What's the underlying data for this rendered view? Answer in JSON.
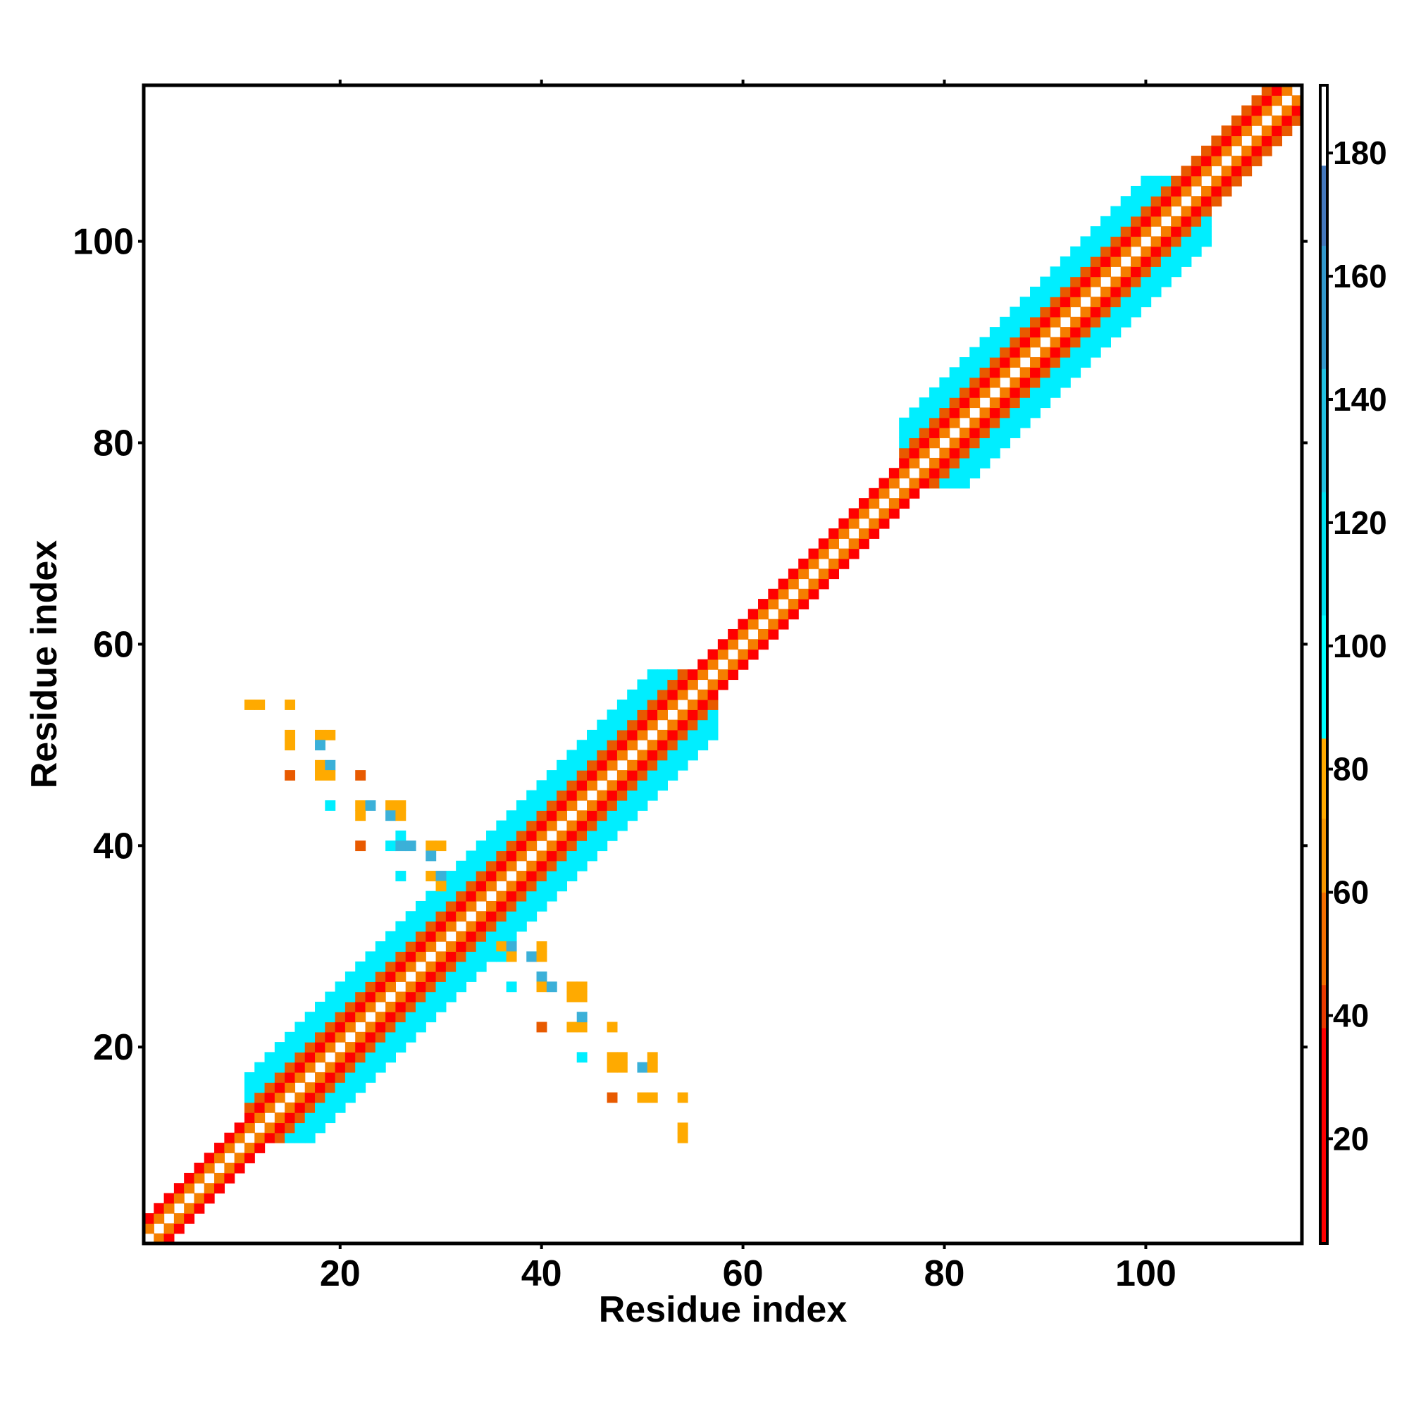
{
  "chart_data": {
    "type": "heatmap",
    "title": "",
    "xlabel": "Residue index",
    "ylabel": "Residue index",
    "xlim": [
      0.5,
      115.5
    ],
    "ylim": [
      0.5,
      115.5
    ],
    "xticks": [
      "20",
      "40",
      "60",
      "80",
      "100"
    ],
    "xtick_values": [
      20,
      40,
      60,
      80,
      100
    ],
    "yticks": [
      "20",
      "40",
      "60",
      "80",
      "100"
    ],
    "ytick_values": [
      20,
      40,
      60,
      80,
      100
    ],
    "grid": false,
    "colorbar": {
      "range": [
        3,
        191
      ],
      "ticks": [
        "20",
        "40",
        "60",
        "80",
        "100",
        "120",
        "140",
        "160",
        "180"
      ],
      "tick_values": [
        20,
        40,
        60,
        80,
        100,
        120,
        140,
        160,
        180
      ],
      "bands": [
        {
          "from": 3,
          "to": 38,
          "color": "#ff0000"
        },
        {
          "from": 38,
          "to": 45,
          "color": "#e83a00"
        },
        {
          "from": 45,
          "to": 60,
          "color": "#f26d00"
        },
        {
          "from": 60,
          "to": 72,
          "color": "#f59500"
        },
        {
          "from": 72,
          "to": 85,
          "color": "#ffaa00"
        },
        {
          "from": 85,
          "to": 105,
          "color": "#00ffff"
        },
        {
          "from": 105,
          "to": 125,
          "color": "#00e0f0"
        },
        {
          "from": 125,
          "to": 145,
          "color": "#22c0e0"
        },
        {
          "from": 145,
          "to": 165,
          "color": "#3399cc"
        },
        {
          "from": 165,
          "to": 178,
          "color": "#4477bb"
        },
        {
          "from": 178,
          "to": 191,
          "color": "#ffffff"
        }
      ]
    },
    "colors": {
      "red": "#ff0000",
      "dark_orange": "#e85a00",
      "orange": "#f57e00",
      "amber": "#ffaa00",
      "cyan": "#00eeff",
      "steel_blue": "#3bb0d8"
    },
    "band_description": "Symmetric contact map: main band along diagonal with half-width ~2 for residues 1-10, ~5-6 for 10-57, ~2 for 58-75, ~5-6 for 76-112; antiparallel off-diagonal contacts between residues 11-30 and 29-54.",
    "diagonal_segments": [
      {
        "from": 1,
        "to": 10,
        "half_width": 2
      },
      {
        "from": 10,
        "to": 57,
        "half_width": 6
      },
      {
        "from": 58,
        "to": 75,
        "half_width": 2
      },
      {
        "from": 76,
        "to": 99,
        "half_width": 6
      },
      {
        "from": 99,
        "to": 106,
        "half_width": 7
      },
      {
        "from": 106,
        "to": 115,
        "half_width": 3
      }
    ],
    "off_diagonal_contacts": [
      {
        "x": 11,
        "y": 54,
        "color": "amber"
      },
      {
        "x": 12,
        "y": 54,
        "color": "amber"
      },
      {
        "x": 15,
        "y": 54,
        "color": "amber"
      },
      {
        "x": 15,
        "y": 51,
        "color": "amber"
      },
      {
        "x": 15,
        "y": 50,
        "color": "amber"
      },
      {
        "x": 18,
        "y": 51,
        "color": "amber"
      },
      {
        "x": 19,
        "y": 51,
        "color": "amber"
      },
      {
        "x": 18,
        "y": 50,
        "color": "steel_blue"
      },
      {
        "x": 15,
        "y": 47,
        "color": "dark_orange"
      },
      {
        "x": 18,
        "y": 48,
        "color": "amber"
      },
      {
        "x": 19,
        "y": 48,
        "color": "steel_blue"
      },
      {
        "x": 18,
        "y": 47,
        "color": "amber"
      },
      {
        "x": 19,
        "y": 47,
        "color": "amber"
      },
      {
        "x": 22,
        "y": 47,
        "color": "dark_orange"
      },
      {
        "x": 19,
        "y": 44,
        "color": "cyan"
      },
      {
        "x": 22,
        "y": 44,
        "color": "amber"
      },
      {
        "x": 23,
        "y": 44,
        "color": "steel_blue"
      },
      {
        "x": 25,
        "y": 44,
        "color": "amber"
      },
      {
        "x": 26,
        "y": 44,
        "color": "amber"
      },
      {
        "x": 22,
        "y": 43,
        "color": "amber"
      },
      {
        "x": 25,
        "y": 43,
        "color": "steel_blue"
      },
      {
        "x": 26,
        "y": 43,
        "color": "amber"
      },
      {
        "x": 22,
        "y": 40,
        "color": "dark_orange"
      },
      {
        "x": 26,
        "y": 41,
        "color": "cyan"
      },
      {
        "x": 25,
        "y": 40,
        "color": "cyan"
      },
      {
        "x": 26,
        "y": 40,
        "color": "steel_blue"
      },
      {
        "x": 27,
        "y": 40,
        "color": "steel_blue"
      },
      {
        "x": 29,
        "y": 40,
        "color": "amber"
      },
      {
        "x": 30,
        "y": 40,
        "color": "amber"
      },
      {
        "x": 29,
        "y": 39,
        "color": "steel_blue"
      },
      {
        "x": 26,
        "y": 37,
        "color": "cyan"
      },
      {
        "x": 29,
        "y": 37,
        "color": "amber"
      },
      {
        "x": 30,
        "y": 37,
        "color": "steel_blue"
      },
      {
        "x": 30,
        "y": 36,
        "color": "amber"
      },
      {
        "x": 36,
        "y": 30,
        "color": "amber"
      },
      {
        "x": 37,
        "y": 30,
        "color": "steel_blue"
      },
      {
        "x": 40,
        "y": 30,
        "color": "amber"
      },
      {
        "x": 36,
        "y": 29,
        "color": "cyan"
      },
      {
        "x": 37,
        "y": 29,
        "color": "amber"
      },
      {
        "x": 39,
        "y": 29,
        "color": "steel_blue"
      },
      {
        "x": 40,
        "y": 29,
        "color": "amber"
      },
      {
        "x": 37,
        "y": 26,
        "color": "cyan"
      },
      {
        "x": 40,
        "y": 27,
        "color": "steel_blue"
      },
      {
        "x": 40,
        "y": 26,
        "color": "amber"
      },
      {
        "x": 41,
        "y": 26,
        "color": "steel_blue"
      },
      {
        "x": 43,
        "y": 26,
        "color": "amber"
      },
      {
        "x": 44,
        "y": 26,
        "color": "amber"
      },
      {
        "x": 43,
        "y": 25,
        "color": "amber"
      },
      {
        "x": 44,
        "y": 25,
        "color": "amber"
      },
      {
        "x": 40,
        "y": 22,
        "color": "dark_orange"
      },
      {
        "x": 43,
        "y": 22,
        "color": "amber"
      },
      {
        "x": 44,
        "y": 22,
        "color": "amber"
      },
      {
        "x": 44,
        "y": 23,
        "color": "steel_blue"
      },
      {
        "x": 47,
        "y": 22,
        "color": "amber"
      },
      {
        "x": 44,
        "y": 19,
        "color": "cyan"
      },
      {
        "x": 47,
        "y": 19,
        "color": "amber"
      },
      {
        "x": 48,
        "y": 19,
        "color": "amber"
      },
      {
        "x": 47,
        "y": 18,
        "color": "amber"
      },
      {
        "x": 48,
        "y": 18,
        "color": "amber"
      },
      {
        "x": 50,
        "y": 18,
        "color": "steel_blue"
      },
      {
        "x": 51,
        "y": 18,
        "color": "amber"
      },
      {
        "x": 51,
        "y": 19,
        "color": "amber"
      },
      {
        "x": 47,
        "y": 15,
        "color": "dark_orange"
      },
      {
        "x": 50,
        "y": 15,
        "color": "amber"
      },
      {
        "x": 51,
        "y": 15,
        "color": "amber"
      },
      {
        "x": 54,
        "y": 15,
        "color": "amber"
      },
      {
        "x": 54,
        "y": 12,
        "color": "amber"
      },
      {
        "x": 54,
        "y": 11,
        "color": "amber"
      }
    ]
  }
}
